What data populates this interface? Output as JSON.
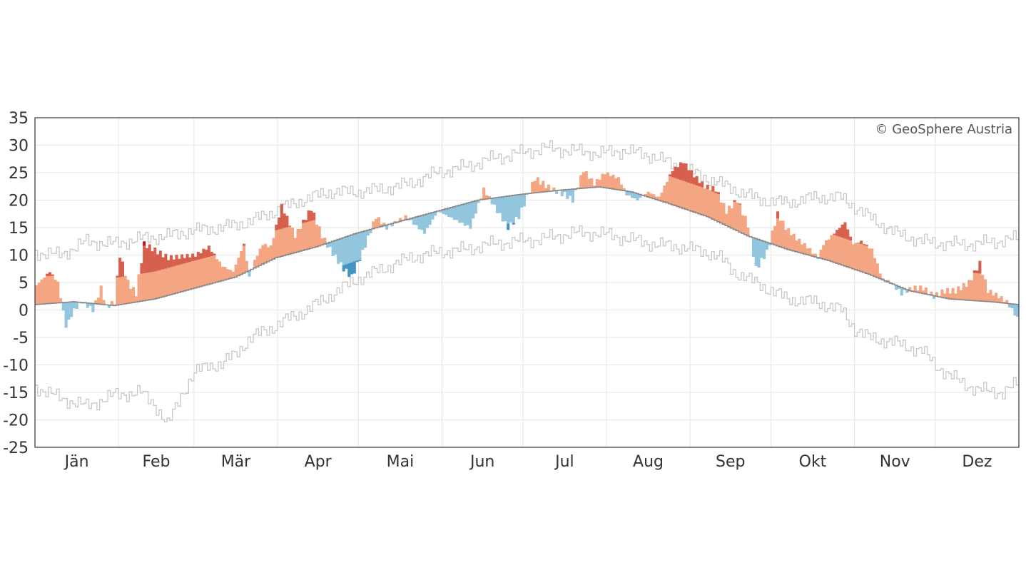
{
  "chart_data": {
    "type": "bar",
    "description_free": true,
    "ylim": [
      -25,
      35
    ],
    "yticks": [
      35,
      30,
      25,
      20,
      15,
      10,
      5,
      0,
      -5,
      -10,
      -15,
      -20,
      -25
    ],
    "ytick_labels": [
      "35",
      "30",
      "25",
      "20",
      "15",
      "10",
      "5",
      "0",
      "-5",
      "-10",
      "-15",
      "-20",
      "-25"
    ],
    "months": [
      "Jän",
      "Feb",
      "Mär",
      "Apr",
      "Mai",
      "Jun",
      "Jul",
      "Aug",
      "Sep",
      "Okt",
      "Nov",
      "Dez"
    ],
    "days_in_year": 365,
    "grid": true,
    "credit": "© GeoSphere Austria",
    "colors": {
      "warm_light": "#f4a582",
      "warm_medium": "#d6604d",
      "warm_dark": "#b2182b",
      "cold_light": "#92c5de",
      "cold_medium": "#4393c3",
      "cold_dark": "#2166ac",
      "climate_mean": "#888888",
      "extremes": "#c8c8c8",
      "grid": "#e6e6e6",
      "frame": "#333333",
      "text": "#333333"
    },
    "climate_mean_knots": [
      [
        1,
        1.0
      ],
      [
        15,
        1.5
      ],
      [
        30,
        0.8
      ],
      [
        45,
        2.0
      ],
      [
        60,
        4.0
      ],
      [
        75,
        6.0
      ],
      [
        90,
        9.5
      ],
      [
        105,
        11.5
      ],
      [
        120,
        14.0
      ],
      [
        135,
        16.0
      ],
      [
        150,
        18.0
      ],
      [
        165,
        20.0
      ],
      [
        180,
        21.0
      ],
      [
        195,
        21.8
      ],
      [
        210,
        22.4
      ],
      [
        222,
        21.5
      ],
      [
        235,
        19.5
      ],
      [
        250,
        17.0
      ],
      [
        265,
        13.5
      ],
      [
        280,
        11.0
      ],
      [
        295,
        9.0
      ],
      [
        310,
        6.5
      ],
      [
        325,
        3.5
      ],
      [
        340,
        2.0
      ],
      [
        355,
        1.5
      ],
      [
        365,
        1.0
      ]
    ],
    "daily_mean_knots": [
      [
        1,
        4.5
      ],
      [
        6,
        7.0
      ],
      [
        9,
        5.0
      ],
      [
        12,
        -3.0
      ],
      [
        15,
        0.0
      ],
      [
        18,
        1.5
      ],
      [
        22,
        0.0
      ],
      [
        25,
        4.0
      ],
      [
        27,
        0.5
      ],
      [
        30,
        1.5
      ],
      [
        32,
        10.0
      ],
      [
        35,
        5.0
      ],
      [
        38,
        3.0
      ],
      [
        41,
        12.0
      ],
      [
        50,
        9.5
      ],
      [
        60,
        10.0
      ],
      [
        65,
        11.5
      ],
      [
        70,
        8.0
      ],
      [
        74,
        7.0
      ],
      [
        78,
        12.0
      ],
      [
        80,
        6.0
      ],
      [
        82,
        9.0
      ],
      [
        85,
        12.0
      ],
      [
        88,
        11.5
      ],
      [
        92,
        19.0
      ],
      [
        97,
        13.5
      ],
      [
        103,
        18.5
      ],
      [
        107,
        13.5
      ],
      [
        110,
        11.0
      ],
      [
        115,
        7.5
      ],
      [
        118,
        6.0
      ],
      [
        122,
        10.5
      ],
      [
        127,
        17.0
      ],
      [
        131,
        15.0
      ],
      [
        138,
        17.0
      ],
      [
        145,
        14.0
      ],
      [
        150,
        18.0
      ],
      [
        156,
        16.5
      ],
      [
        162,
        15.0
      ],
      [
        167,
        22.0
      ],
      [
        172,
        18.0
      ],
      [
        176,
        15.0
      ],
      [
        180,
        17.0
      ],
      [
        186,
        24.0
      ],
      [
        192,
        22.0
      ],
      [
        197,
        21.0
      ],
      [
        200,
        20.0
      ],
      [
        204,
        25.5
      ],
      [
        208,
        23.0
      ],
      [
        212,
        25.0
      ],
      [
        217,
        24.0
      ],
      [
        220,
        21.0
      ],
      [
        224,
        20.0
      ],
      [
        228,
        21.5
      ],
      [
        232,
        20.5
      ],
      [
        237,
        25.5
      ],
      [
        241,
        27.0
      ],
      [
        245,
        24.5
      ],
      [
        249,
        22.5
      ],
      [
        253,
        22.0
      ],
      [
        257,
        18.0
      ],
      [
        261,
        20.0
      ],
      [
        265,
        15.5
      ],
      [
        268,
        7.5
      ],
      [
        272,
        10.5
      ],
      [
        276,
        17.5
      ],
      [
        279,
        15.0
      ],
      [
        283,
        13.0
      ],
      [
        287,
        11.5
      ],
      [
        291,
        9.5
      ],
      [
        293,
        12.0
      ],
      [
        297,
        14.0
      ],
      [
        301,
        16.0
      ],
      [
        304,
        12.0
      ],
      [
        307,
        12.5
      ],
      [
        311,
        11.0
      ],
      [
        315,
        5.5
      ],
      [
        318,
        5.0
      ],
      [
        322,
        3.0
      ],
      [
        326,
        4.0
      ],
      [
        330,
        4.0
      ],
      [
        334,
        2.5
      ],
      [
        338,
        3.5
      ],
      [
        342,
        3.5
      ],
      [
        347,
        5.0
      ],
      [
        351,
        8.5
      ],
      [
        354,
        3.5
      ],
      [
        358,
        2.5
      ],
      [
        361,
        1.5
      ],
      [
        365,
        -1.5
      ]
    ],
    "abs_max_knots": [
      [
        1,
        10.5
      ],
      [
        10,
        10.0
      ],
      [
        20,
        12.5
      ],
      [
        30,
        12.0
      ],
      [
        40,
        13.0
      ],
      [
        50,
        13.5
      ],
      [
        60,
        14.5
      ],
      [
        70,
        15.0
      ],
      [
        80,
        16.0
      ],
      [
        90,
        18.0
      ],
      [
        100,
        20.0
      ],
      [
        110,
        21.5
      ],
      [
        120,
        21.5
      ],
      [
        130,
        22.0
      ],
      [
        140,
        23.0
      ],
      [
        150,
        25.0
      ],
      [
        160,
        26.0
      ],
      [
        170,
        27.5
      ],
      [
        180,
        28.5
      ],
      [
        190,
        29.5
      ],
      [
        200,
        29.0
      ],
      [
        210,
        28.5
      ],
      [
        220,
        29.0
      ],
      [
        230,
        28.0
      ],
      [
        240,
        26.0
      ],
      [
        250,
        24.0
      ],
      [
        260,
        22.0
      ],
      [
        270,
        20.0
      ],
      [
        280,
        19.5
      ],
      [
        290,
        20.5
      ],
      [
        300,
        20.5
      ],
      [
        310,
        17.0
      ],
      [
        320,
        14.0
      ],
      [
        330,
        12.5
      ],
      [
        340,
        12.0
      ],
      [
        350,
        12.0
      ],
      [
        365,
        13.0
      ]
    ],
    "abs_min_knots": [
      [
        1,
        -14.0
      ],
      [
        10,
        -16.0
      ],
      [
        20,
        -17.5
      ],
      [
        30,
        -15.5
      ],
      [
        40,
        -15.0
      ],
      [
        45,
        -17.0
      ],
      [
        50,
        -21.0
      ],
      [
        55,
        -15.5
      ],
      [
        60,
        -11.5
      ],
      [
        65,
        -10.0
      ],
      [
        70,
        -10.0
      ],
      [
        75,
        -8.0
      ],
      [
        80,
        -5.5
      ],
      [
        85,
        -4.0
      ],
      [
        90,
        -3.0
      ],
      [
        95,
        -1.5
      ],
      [
        100,
        -0.5
      ],
      [
        105,
        1.0
      ],
      [
        110,
        2.5
      ],
      [
        115,
        4.0
      ],
      [
        120,
        5.5
      ],
      [
        130,
        7.5
      ],
      [
        140,
        9.5
      ],
      [
        150,
        10.5
      ],
      [
        160,
        11.0
      ],
      [
        170,
        12.0
      ],
      [
        180,
        12.5
      ],
      [
        190,
        13.0
      ],
      [
        200,
        14.0
      ],
      [
        210,
        14.0
      ],
      [
        220,
        13.0
      ],
      [
        230,
        12.0
      ],
      [
        240,
        11.5
      ],
      [
        250,
        10.5
      ],
      [
        255,
        9.5
      ],
      [
        260,
        7.0
      ],
      [
        270,
        4.5
      ],
      [
        280,
        2.0
      ],
      [
        290,
        1.5
      ],
      [
        300,
        0.0
      ],
      [
        305,
        -3.5
      ],
      [
        310,
        -5.0
      ],
      [
        320,
        -6.0
      ],
      [
        330,
        -7.5
      ],
      [
        335,
        -10.0
      ],
      [
        340,
        -12.0
      ],
      [
        350,
        -14.5
      ],
      [
        360,
        -15.0
      ],
      [
        365,
        -13.5
      ]
    ]
  }
}
